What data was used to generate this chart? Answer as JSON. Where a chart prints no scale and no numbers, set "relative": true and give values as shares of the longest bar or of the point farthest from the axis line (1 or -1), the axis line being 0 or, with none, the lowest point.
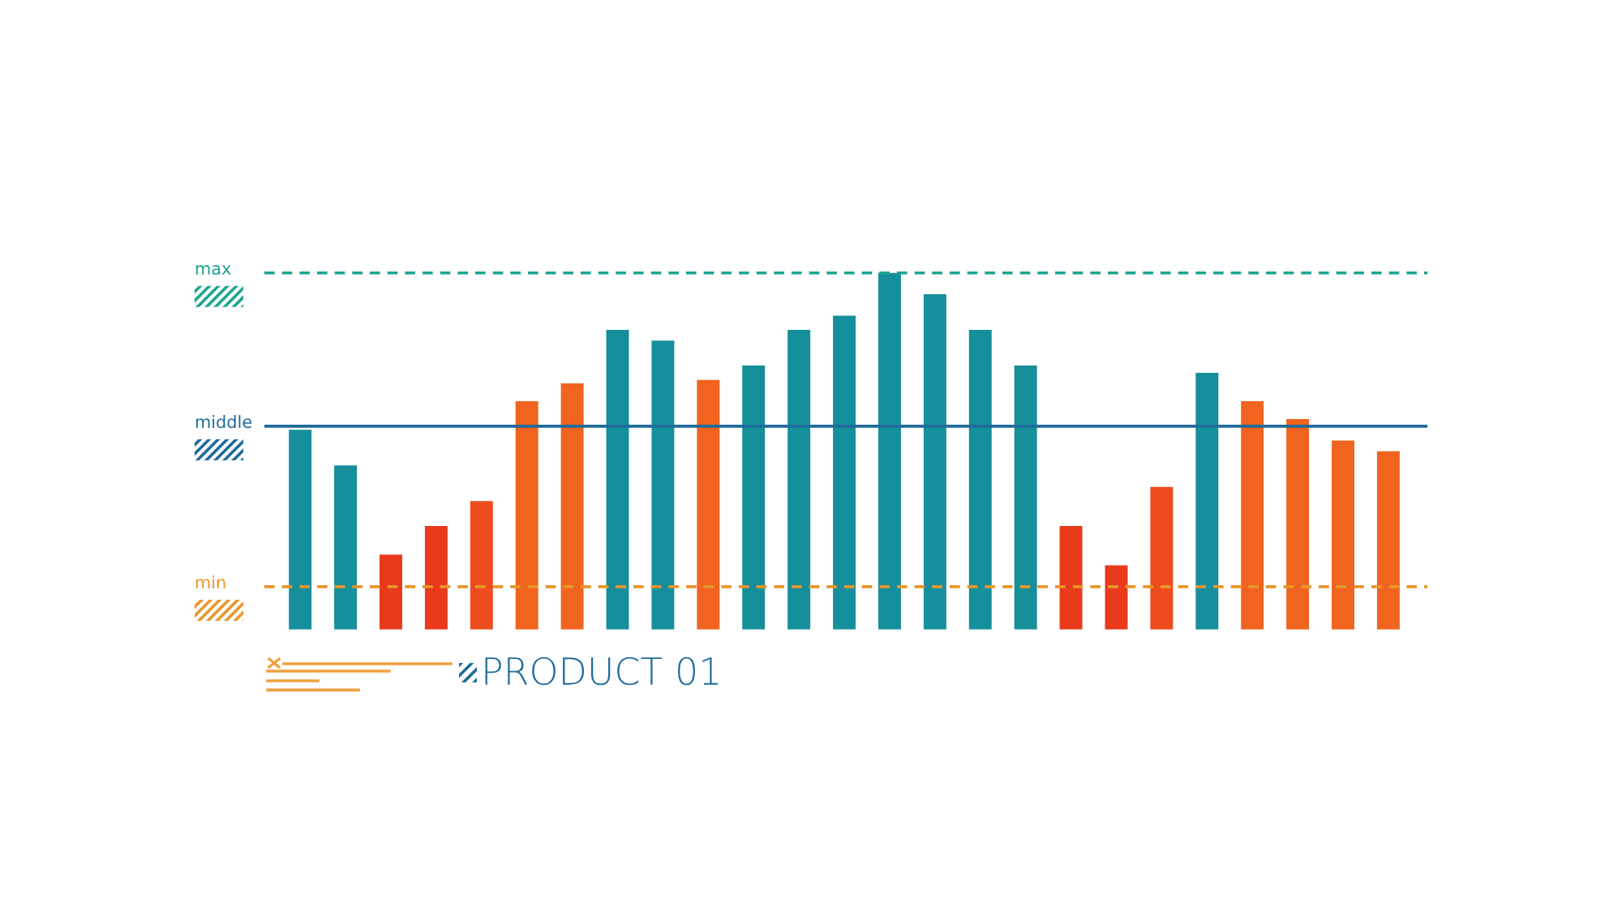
{
  "chart_data": {
    "type": "bar",
    "title": "PRODUCT 01",
    "relative": true,
    "categories": [
      null,
      null,
      null,
      null,
      null,
      null,
      null,
      null,
      null,
      null,
      null,
      null,
      null,
      null,
      null,
      null,
      null,
      null,
      null,
      null,
      null,
      null,
      null,
      null,
      null
    ],
    "values": [
      0.56,
      0.46,
      0.21,
      0.29,
      0.36,
      0.64,
      0.69,
      0.84,
      0.81,
      0.7,
      0.74,
      0.84,
      0.88,
      1.0,
      0.94,
      0.84,
      0.74,
      0.29,
      0.18,
      0.4,
      0.72,
      0.64,
      0.59,
      0.53,
      0.5
    ],
    "colors": [
      "#168f9c",
      "#168f9c",
      "#e93a1c",
      "#e93a1c",
      "#ec4c1d",
      "#f0641f",
      "#f0641f",
      "#168f9c",
      "#168f9c",
      "#f0641f",
      "#168f9c",
      "#168f9c",
      "#168f9c",
      "#168f9c",
      "#168f9c",
      "#168f9c",
      "#168f9c",
      "#e93a1c",
      "#e93a1c",
      "#ec4c1d",
      "#168f9c",
      "#f0641f",
      "#f0641f",
      "#f0641f",
      "#f0641f"
    ],
    "ref_lines": [
      {
        "axis": "y",
        "value": 1.0,
        "label": "max",
        "color": "#1aa590",
        "line_style": "dashed"
      },
      {
        "axis": "y",
        "value": 0.57,
        "label": "middle",
        "color": "#1f6b9a",
        "line_style": "solid"
      },
      {
        "axis": "y",
        "value": 0.12,
        "label": "min",
        "color": "#e8962a",
        "line_style": "dashed"
      }
    ]
  }
}
